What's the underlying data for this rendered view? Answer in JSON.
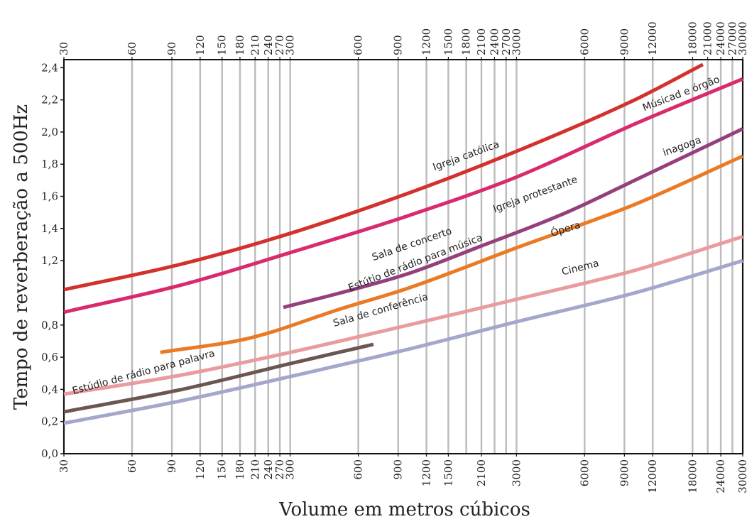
{
  "chart_data": {
    "type": "line",
    "title": "",
    "xlabel": "Volume em metros cúbicos",
    "ylabel": "Tempo de reverberação a 500Hz",
    "x_scale": "log",
    "xlim": [
      30,
      30000
    ],
    "ylim": [
      0,
      2.45
    ],
    "grid": "vertical",
    "legend": "none",
    "x_ticks": [
      30,
      60,
      90,
      120,
      150,
      180,
      210,
      240,
      270,
      300,
      600,
      900,
      1200,
      1500,
      1800,
      2100,
      2400,
      2700,
      3000,
      6000,
      9000,
      12000,
      18000,
      21000,
      24000,
      27000,
      30000
    ],
    "x_tick_labels_bottom": [
      "30",
      "60",
      "90",
      "120",
      "150",
      "180",
      "210",
      "240",
      "270",
      "300",
      "600",
      "900",
      "1200",
      "1500",
      "2100",
      "3000",
      "6000",
      "9000",
      "12000",
      "18000",
      "24000",
      "30000"
    ],
    "x_tick_labels_top": [
      "30",
      "60",
      "90",
      "120",
      "150",
      "180",
      "210",
      "240",
      "270",
      "300",
      "600",
      "900",
      "1200",
      "1500",
      "1800",
      "2100",
      "2400",
      "2700",
      "3000",
      "6000",
      "9000",
      "12000",
      "18000",
      "21000",
      "24000",
      "27000",
      "30000"
    ],
    "y_ticks": [
      {
        "value": 0.0,
        "label": "0,0"
      },
      {
        "value": 0.2,
        "label": "0,2"
      },
      {
        "value": 0.4,
        "label": "0,4"
      },
      {
        "value": 0.6,
        "label": "0,6"
      },
      {
        "value": 0.8,
        "label": "0,8"
      },
      {
        "value": 1.2,
        "label": "1,2"
      },
      {
        "value": 1.4,
        "label": "1,4"
      },
      {
        "value": 1.6,
        "label": "1,6"
      },
      {
        "value": 1.8,
        "label": "1,8"
      },
      {
        "value": 2.0,
        "label": "2,0"
      },
      {
        "value": 2.2,
        "label": "2,2"
      },
      {
        "value": 2.4,
        "label": "2,4"
      }
    ],
    "series": [
      {
        "name": "Igreja católica",
        "color": "#d3312e",
        "x": [
          30,
          100,
          300,
          1000,
          3000,
          10000,
          20000
        ],
        "y": [
          1.02,
          1.18,
          1.37,
          1.62,
          1.88,
          2.2,
          2.42
        ]
      },
      {
        "name": "Músicad e órgão",
        "color": "#d82a6d",
        "x": [
          30,
          100,
          300,
          1000,
          3000,
          10000,
          30000
        ],
        "y": [
          0.88,
          1.05,
          1.25,
          1.48,
          1.72,
          2.05,
          2.33
        ]
      },
      {
        "name": "Sala de concerto",
        "color": "#953f7c",
        "x": [
          280,
          500,
          1000,
          2000,
          5000,
          10000,
          30000
        ],
        "y": [
          0.91,
          1.0,
          1.12,
          1.28,
          1.5,
          1.7,
          2.02
        ]
      },
      {
        "name": "inagoga",
        "color": "",
        "x": [],
        "y": []
      },
      {
        "name": "Igreja protestante",
        "color": "",
        "x": [],
        "y": []
      },
      {
        "name": "Estútio de rádio para música",
        "color": "",
        "x": [],
        "y": []
      },
      {
        "name": "Ópera",
        "color": "#ea7a24",
        "x": [
          80,
          200,
          500,
          1000,
          3000,
          10000,
          30000
        ],
        "y": [
          0.63,
          0.72,
          0.9,
          1.03,
          1.28,
          1.55,
          1.85
        ]
      },
      {
        "name": "Sala de conferência",
        "color": "#e99b9f",
        "x": [
          30,
          100,
          300,
          1000,
          3000,
          10000,
          30000
        ],
        "y": [
          0.37,
          0.49,
          0.63,
          0.8,
          0.96,
          1.14,
          1.35
        ]
      },
      {
        "name": "Cinema",
        "color": "#a4a6cc",
        "x": [
          30,
          100,
          300,
          1000,
          3000,
          10000,
          30000
        ],
        "y": [
          0.19,
          0.33,
          0.48,
          0.65,
          0.82,
          1.0,
          1.2
        ]
      },
      {
        "name": "Estúdio de rádio para palavra",
        "color": "#6b5652",
        "x": [
          30,
          100,
          300,
          700
        ],
        "y": [
          0.26,
          0.4,
          0.56,
          0.68
        ]
      }
    ],
    "labels": [
      {
        "text": "Igreja católica",
        "x": 1300,
        "y": 1.76,
        "angle": -20
      },
      {
        "text": "Músicad e órgão",
        "x": 11000,
        "y": 2.13,
        "angle": -21
      },
      {
        "text": "inagoga",
        "x": 13500,
        "y": 1.85,
        "angle": -20
      },
      {
        "text": "Igreja protestante",
        "x": 2400,
        "y": 1.5,
        "angle": -20
      },
      {
        "text": "Ópera",
        "x": 4300,
        "y": 1.35,
        "angle": -17
      },
      {
        "text": "Sala de concerto",
        "x": 700,
        "y": 1.2,
        "angle": -19
      },
      {
        "text": "Estútio de rádio para música",
        "x": 550,
        "y": 1.01,
        "angle": -21
      },
      {
        "text": "Sala de conferência",
        "x": 470,
        "y": 0.79,
        "angle": -16
      },
      {
        "text": "Cinema",
        "x": 4800,
        "y": 1.11,
        "angle": -14
      },
      {
        "text": "Estúdio de rádio para palavra",
        "x": 33,
        "y": 0.37,
        "angle": -15
      }
    ]
  }
}
